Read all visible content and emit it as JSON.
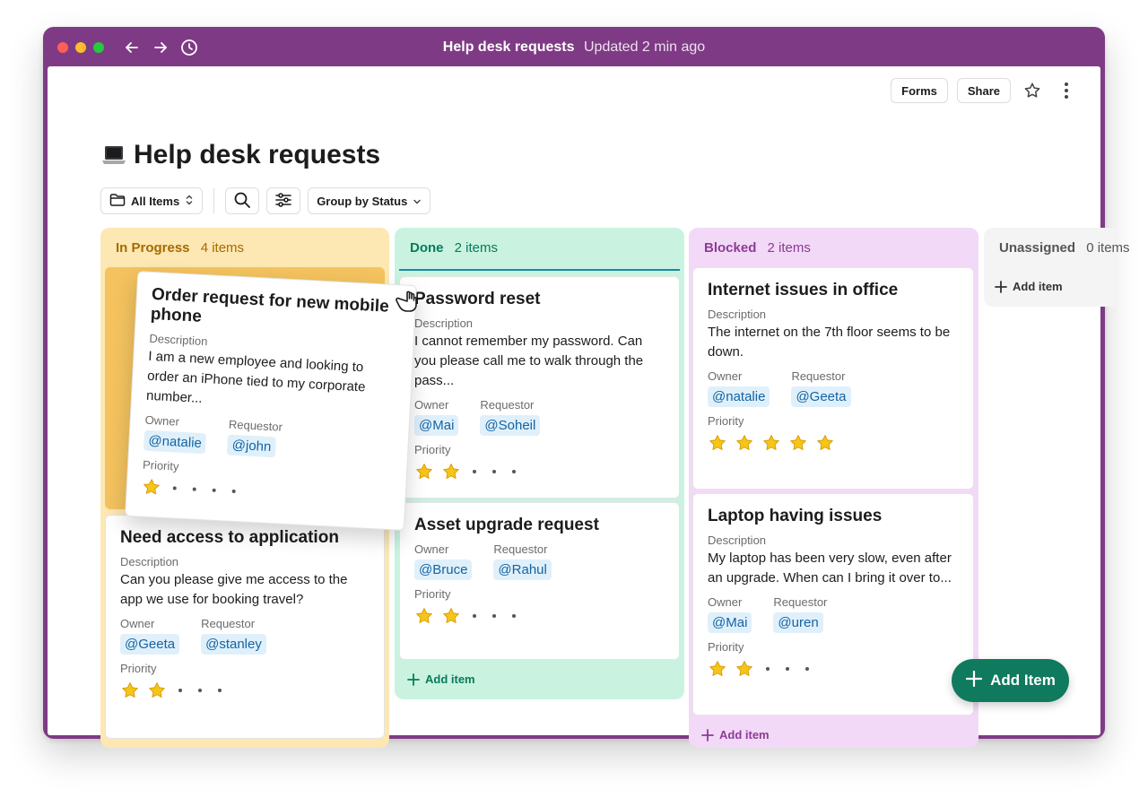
{
  "window": {
    "title": "Help desk requests",
    "subtitle": "Updated 2 min ago"
  },
  "top_actions": {
    "forms_label": "Forms",
    "share_label": "Share"
  },
  "page": {
    "title": "Help desk requests",
    "icon": "laptop-emoji"
  },
  "toolbar": {
    "view_label": "All Items",
    "group_label": "Group by Status"
  },
  "columns": [
    {
      "name": "In Progress",
      "count": "4 items",
      "color": "#fde7b3",
      "cards": [
        {
          "title": "Order request for new mobile phone",
          "description_label": "Description",
          "description": "I am a new employee and looking to order an iPhone tied to my corporate number...",
          "owner_label": "Owner",
          "owner": "@natalie",
          "requestor_label": "Requestor",
          "requestor": "@john",
          "priority_label": "Priority",
          "priority": 1
        },
        {
          "title": "Need access to application",
          "description_label": "Description",
          "description": "Can you please give me access to the app we use for booking travel?",
          "owner_label": "Owner",
          "owner": "@Geeta",
          "requestor_label": "Requestor",
          "requestor": "@stanley",
          "priority_label": "Priority",
          "priority": 2
        }
      ]
    },
    {
      "name": "Done",
      "count": "2 items",
      "color": "#c9f3e0",
      "add_label": "Add item",
      "cards": [
        {
          "title": "Password reset",
          "description_label": "Description",
          "description": "I cannot remember my password. Can you please call me to walk through the pass...",
          "owner_label": "Owner",
          "owner": "@Mai",
          "requestor_label": "Requestor",
          "requestor": "@Soheil",
          "priority_label": "Priority",
          "priority": 2
        },
        {
          "title": "Asset upgrade request",
          "owner_label": "Owner",
          "owner": "@Bruce",
          "requestor_label": "Requestor",
          "requestor": "@Rahul",
          "priority_label": "Priority",
          "priority": 2
        }
      ]
    },
    {
      "name": "Blocked",
      "count": "2 items",
      "color": "#f2d9f7",
      "add_label": "Add item",
      "cards": [
        {
          "title": "Internet issues in office",
          "description_label": "Description",
          "description": "The internet on the 7th floor seems to be down.",
          "owner_label": "Owner",
          "owner": "@natalie",
          "requestor_label": "Requestor",
          "requestor": "@Geeta",
          "priority_label": "Priority",
          "priority": 5
        },
        {
          "title": "Laptop having issues",
          "description_label": "Description",
          "description": "My laptop has been very slow, even after an upgrade. When can I bring it over to...",
          "owner_label": "Owner",
          "owner": "@Mai",
          "requestor_label": "Requestor",
          "requestor": "@uren",
          "priority_label": "Priority",
          "priority": 2
        }
      ]
    },
    {
      "name": "Unassigned",
      "count": "0 items",
      "color": "#f4f4f4",
      "add_label": "Add item"
    }
  ],
  "fab_label": "Add Item",
  "colors": {
    "window_frame": "#7f3a85",
    "mention_bg": "#e0f0fb",
    "mention_text": "#1264a3",
    "fab": "#0f7a5e",
    "star": "#f5c518"
  }
}
